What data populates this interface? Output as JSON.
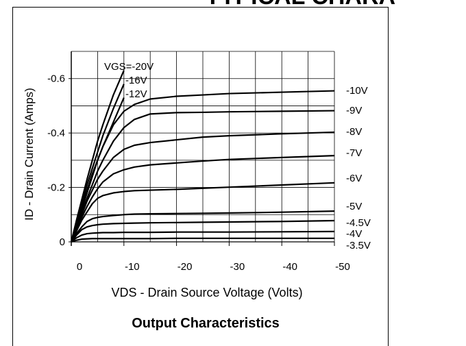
{
  "header": "TYPICAL CHARA",
  "chart_data": {
    "type": "line",
    "title": "Output Characteristics",
    "x_label": "VDS - Drain Source Voltage (Volts)",
    "y_label": "ID - Drain Current (Amps)",
    "xlim": [
      0,
      -50
    ],
    "ylim": [
      0,
      -0.7
    ],
    "xticks": [
      0,
      -10,
      -20,
      -30,
      -40,
      -50
    ],
    "yticks": [
      0,
      -0.2,
      -0.4,
      -0.6
    ],
    "x_minor_ticks": [
      -5,
      -15,
      -25,
      -35,
      -45
    ],
    "y_minor_ticks": [
      -0.1,
      -0.3,
      -0.5,
      -0.7
    ],
    "grid": true,
    "color": "#000000",
    "x": [
      0,
      -1,
      -2,
      -3,
      -4,
      -5,
      -6,
      -8,
      -10,
      -12,
      -15,
      -20,
      -25,
      -30,
      -40,
      -50
    ],
    "series": [
      {
        "name": "VGS=-20V",
        "values": [
          0,
          -0.08,
          -0.155,
          -0.23,
          -0.3,
          -0.37,
          -0.43,
          -0.54,
          -0.63,
          null,
          null,
          null,
          null,
          null,
          null,
          null
        ]
      },
      {
        "name": "-16V",
        "values": [
          0,
          -0.07,
          -0.14,
          -0.21,
          -0.27,
          -0.33,
          -0.39,
          -0.49,
          -0.58,
          null,
          null,
          null,
          null,
          null,
          null,
          null
        ]
      },
      {
        "name": "-12V",
        "values": [
          0,
          -0.065,
          -0.13,
          -0.19,
          -0.25,
          -0.3,
          -0.35,
          -0.44,
          -0.53,
          null,
          null,
          null,
          null,
          null,
          null,
          null
        ]
      },
      {
        "name": "-10V",
        "values": [
          0,
          -0.06,
          -0.12,
          -0.18,
          -0.24,
          -0.3,
          -0.35,
          -0.43,
          -0.48,
          -0.505,
          -0.525,
          -0.535,
          -0.54,
          -0.545,
          -0.55,
          -0.555
        ]
      },
      {
        "name": "-9V",
        "values": [
          0,
          -0.055,
          -0.11,
          -0.16,
          -0.21,
          -0.26,
          -0.3,
          -0.37,
          -0.42,
          -0.45,
          -0.47,
          -0.475,
          -0.476,
          -0.478,
          -0.48,
          -0.482
        ]
      },
      {
        "name": "-8V",
        "values": [
          0,
          -0.05,
          -0.1,
          -0.15,
          -0.19,
          -0.23,
          -0.26,
          -0.31,
          -0.34,
          -0.355,
          -0.365,
          -0.375,
          -0.385,
          -0.39,
          -0.397,
          -0.403
        ]
      },
      {
        "name": "-7V",
        "values": [
          0,
          -0.045,
          -0.09,
          -0.13,
          -0.165,
          -0.195,
          -0.22,
          -0.25,
          -0.265,
          -0.275,
          -0.283,
          -0.29,
          -0.297,
          -0.303,
          -0.31,
          -0.317
        ]
      },
      {
        "name": "-6V",
        "values": [
          0,
          -0.04,
          -0.08,
          -0.11,
          -0.14,
          -0.16,
          -0.17,
          -0.18,
          -0.185,
          -0.188,
          -0.19,
          -0.193,
          -0.197,
          -0.201,
          -0.209,
          -0.217
        ]
      },
      {
        "name": "-5V",
        "values": [
          0,
          -0.03,
          -0.055,
          -0.075,
          -0.085,
          -0.09,
          -0.093,
          -0.097,
          -0.1,
          -0.102,
          -0.103,
          -0.104,
          -0.105,
          -0.106,
          -0.109,
          -0.113
        ]
      },
      {
        "name": "-4.5V",
        "values": [
          0,
          -0.025,
          -0.045,
          -0.055,
          -0.06,
          -0.063,
          -0.065,
          -0.067,
          -0.068,
          -0.069,
          -0.07,
          -0.071,
          -0.072,
          -0.073,
          -0.075,
          -0.078
        ]
      },
      {
        "name": "-4V",
        "values": [
          0,
          -0.015,
          -0.025,
          -0.03,
          -0.032,
          -0.033,
          -0.034,
          -0.034,
          -0.035,
          -0.035,
          -0.035,
          -0.036,
          -0.036,
          -0.036,
          -0.037,
          -0.038
        ]
      },
      {
        "name": "-3.5V",
        "values": [
          0,
          -0.006,
          -0.01,
          -0.011,
          -0.012,
          -0.012,
          -0.012,
          -0.012,
          -0.012,
          -0.012,
          -0.012,
          -0.013,
          -0.013,
          -0.013,
          -0.013,
          -0.013
        ]
      }
    ]
  }
}
